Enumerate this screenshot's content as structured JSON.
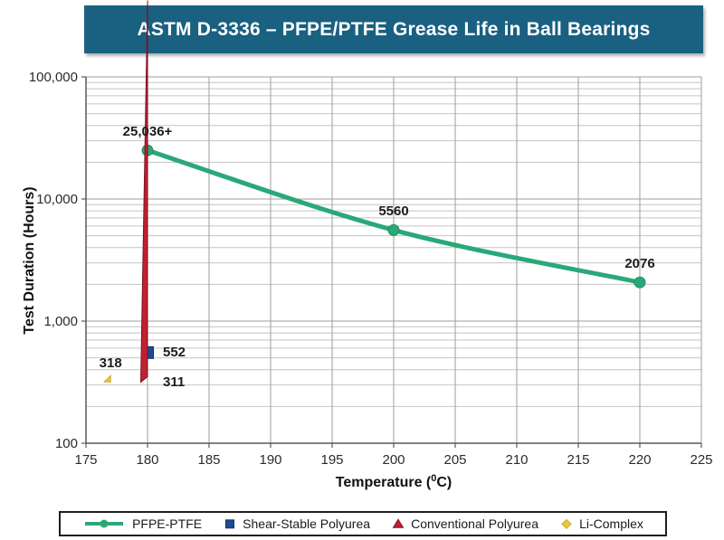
{
  "colors": {
    "banner_bg": "#1a6080",
    "banner_text": "#ffffff",
    "grid_major": "#9e9e9e",
    "grid_minor": "#c4c4c4",
    "axis": "#595959"
  },
  "chart_data": {
    "type": "line",
    "title": "ASTM D-3336 – PFPE/PTFE Grease Life in Ball Bearings",
    "xlabel": {
      "pre": "Temperature (",
      "sup": "0",
      "post": "C)"
    },
    "ylabel": "Test Duration (Hours)",
    "xlim": [
      175,
      225
    ],
    "ylim": [
      100,
      100000
    ],
    "yscale": "log",
    "grid": true,
    "legend_position": "bottom",
    "x_ticks": [
      175,
      180,
      185,
      190,
      195,
      200,
      205,
      210,
      215,
      220,
      225
    ],
    "y_ticks": [
      {
        "value": 100,
        "label": "100"
      },
      {
        "value": 1000,
        "label": "1,000"
      },
      {
        "value": 10000,
        "label": "10,000"
      },
      {
        "value": 100000,
        "label": "100,000"
      }
    ],
    "series": [
      {
        "name": "PFPE-PTFE",
        "type": "line",
        "marker": "circle",
        "color": "#2aa878",
        "edge": "#1f8f63",
        "points": [
          {
            "x": 180,
            "y": 25036,
            "label": "25,036+",
            "label_pos": "above"
          },
          {
            "x": 200,
            "y": 5560,
            "label": "5560",
            "label_pos": "above"
          },
          {
            "x": 220,
            "y": 2076,
            "label": "2076",
            "label_pos": "above"
          }
        ]
      },
      {
        "name": "Shear-Stable Polyurea",
        "type": "scatter",
        "marker": "square",
        "color": "#1e4a94",
        "edge": "#12305f",
        "points": [
          {
            "x": 180,
            "y": 552,
            "label": "552",
            "label_pos": "right"
          }
        ]
      },
      {
        "name": "Conventional Polyurea",
        "type": "scatter",
        "marker": "triangle",
        "color": "#c0202f",
        "edge": "#7d1220",
        "points": [
          {
            "x": 180,
            "y": 311,
            "label": "311",
            "label_pos": "right"
          }
        ]
      },
      {
        "name": "Li-Complex",
        "type": "scatter",
        "marker": "diamond",
        "color": "#e9c83f",
        "edge": "#d0a92a",
        "points": [
          {
            "x": 177,
            "y": 318,
            "label": "318",
            "label_pos": "above"
          }
        ]
      }
    ]
  }
}
